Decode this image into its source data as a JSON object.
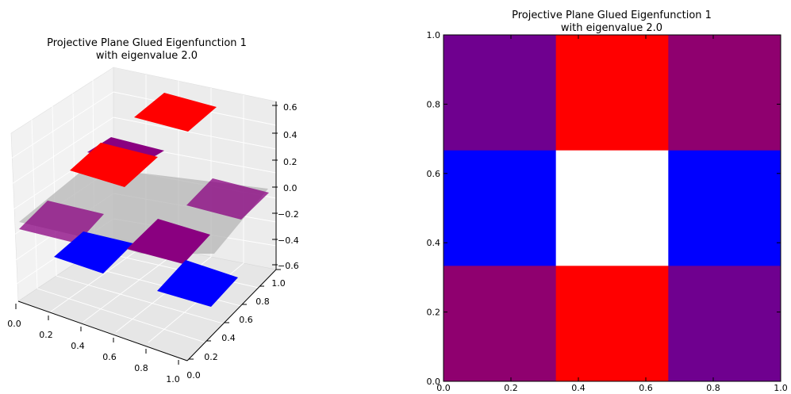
{
  "chart_data": [
    {
      "type": "surface3d",
      "title_line1": "Projective Plane Glued Eigenfunction 1",
      "title_line2": "with eigenvalue 2.0",
      "x_ticks": [
        "0.0",
        "0.2",
        "0.4",
        "0.6",
        "0.8",
        "1.0"
      ],
      "y_ticks": [
        "0.0",
        "0.2",
        "0.4",
        "0.6",
        "0.8",
        "1.0"
      ],
      "z_ticks": [
        "0.6",
        "0.4",
        "0.2",
        "0.0",
        "−0.2",
        "−0.4",
        "−0.6"
      ]
    },
    {
      "type": "heatmap",
      "title_line1": "Projective Plane Glued Eigenfunction 1",
      "title_line2": "with eigenvalue 2.0",
      "xlim": [
        0,
        1
      ],
      "ylim": [
        0,
        1
      ],
      "x_ticks": [
        "0.0",
        "0.2",
        "0.4",
        "0.6",
        "0.8",
        "1.0"
      ],
      "y_ticks": [
        "0.0",
        "0.2",
        "0.4",
        "0.6",
        "0.8",
        "1.0"
      ],
      "grid": [
        [
          "#6f008f",
          "#ff0000",
          "#8f006f"
        ],
        [
          "#0000ff",
          "#ffffff",
          "#0000ff"
        ],
        [
          "#8f006f",
          "#ff0000",
          "#6f008f"
        ]
      ]
    }
  ]
}
